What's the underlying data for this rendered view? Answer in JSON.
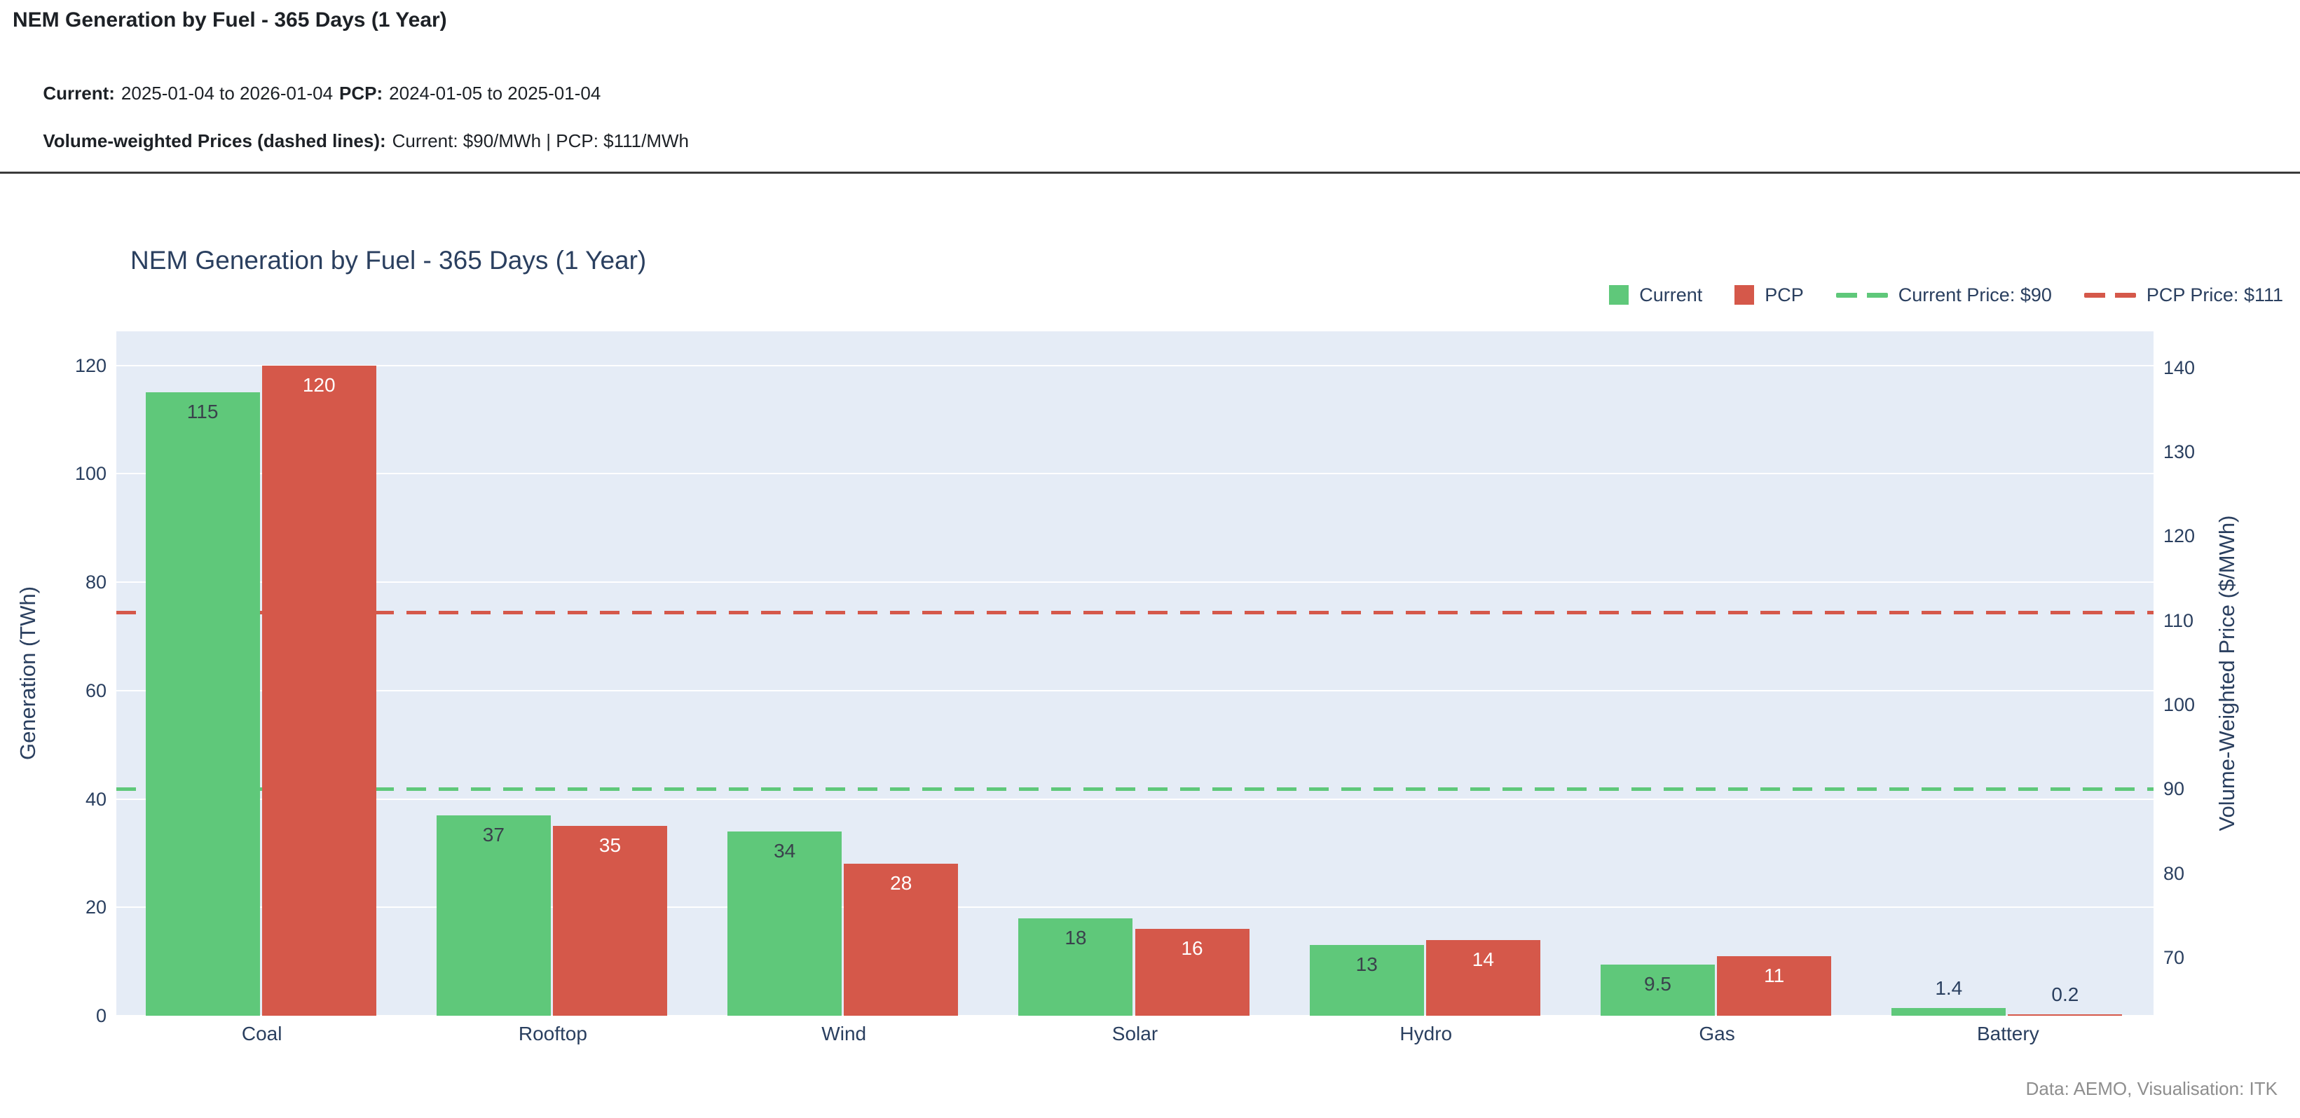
{
  "header": {
    "title": "NEM Generation by Fuel - 365 Days (1 Year)",
    "current_label": "Current:",
    "current_value": "2025-01-04 to 2026-01-04",
    "pcp_label": "PCP:",
    "pcp_value": "2024-01-05 to 2025-01-04",
    "prices_label": "Volume-weighted Prices (dashed lines):",
    "prices_value": "Current: $90/MWh | PCP: $111/MWh"
  },
  "footer": {
    "attribution": "Data: AEMO, Visualisation: ITK"
  },
  "colors": {
    "current": "#5fc87a",
    "pcp": "#d5584a",
    "plot_bg": "#e5ecf6",
    "grid": "#ffffff",
    "axis_text": "#2a3f5f",
    "inside_label_dark": "#3a414c",
    "inside_label_light": "#ffffff",
    "outside_label": "#2a3f5f",
    "attribution": "#8e8e8e"
  },
  "chart_data": {
    "type": "bar",
    "title": "NEM Generation by Fuel - 365 Days (1 Year)",
    "categories": [
      "Coal",
      "Rooftop",
      "Wind",
      "Solar",
      "Hydro",
      "Gas",
      "Battery"
    ],
    "series": [
      {
        "name": "Current",
        "color": "#5fc87a",
        "values": [
          115,
          37,
          34,
          18,
          13,
          9.5,
          1.4
        ]
      },
      {
        "name": "PCP",
        "color": "#d5584a",
        "values": [
          120,
          35,
          28,
          16,
          14,
          11,
          0.2
        ]
      }
    ],
    "bar_labels": [
      [
        "115",
        "37",
        "34",
        "18",
        "13",
        "9.5",
        "1.4"
      ],
      [
        "120",
        "35",
        "28",
        "16",
        "14",
        "11",
        "0.2"
      ]
    ],
    "price_lines": [
      {
        "name": "Current Price: $90",
        "value": 90,
        "color": "#5fc87a",
        "dash": "dash"
      },
      {
        "name": "PCP Price: $111",
        "value": 111,
        "color": "#d5584a",
        "dash": "dash"
      }
    ],
    "y_left": {
      "title": "Generation (TWh)",
      "ticks": [
        0,
        20,
        40,
        60,
        80,
        100,
        120
      ],
      "range": [
        0,
        126.3
      ]
    },
    "y_right": {
      "title": "Volume-Weighted Price ($/MWh)",
      "ticks": [
        70,
        80,
        90,
        100,
        110,
        120,
        130,
        140
      ],
      "range": [
        63.1,
        144.3
      ]
    },
    "xlabel": "",
    "grid": true,
    "legend_position": "top-right"
  }
}
